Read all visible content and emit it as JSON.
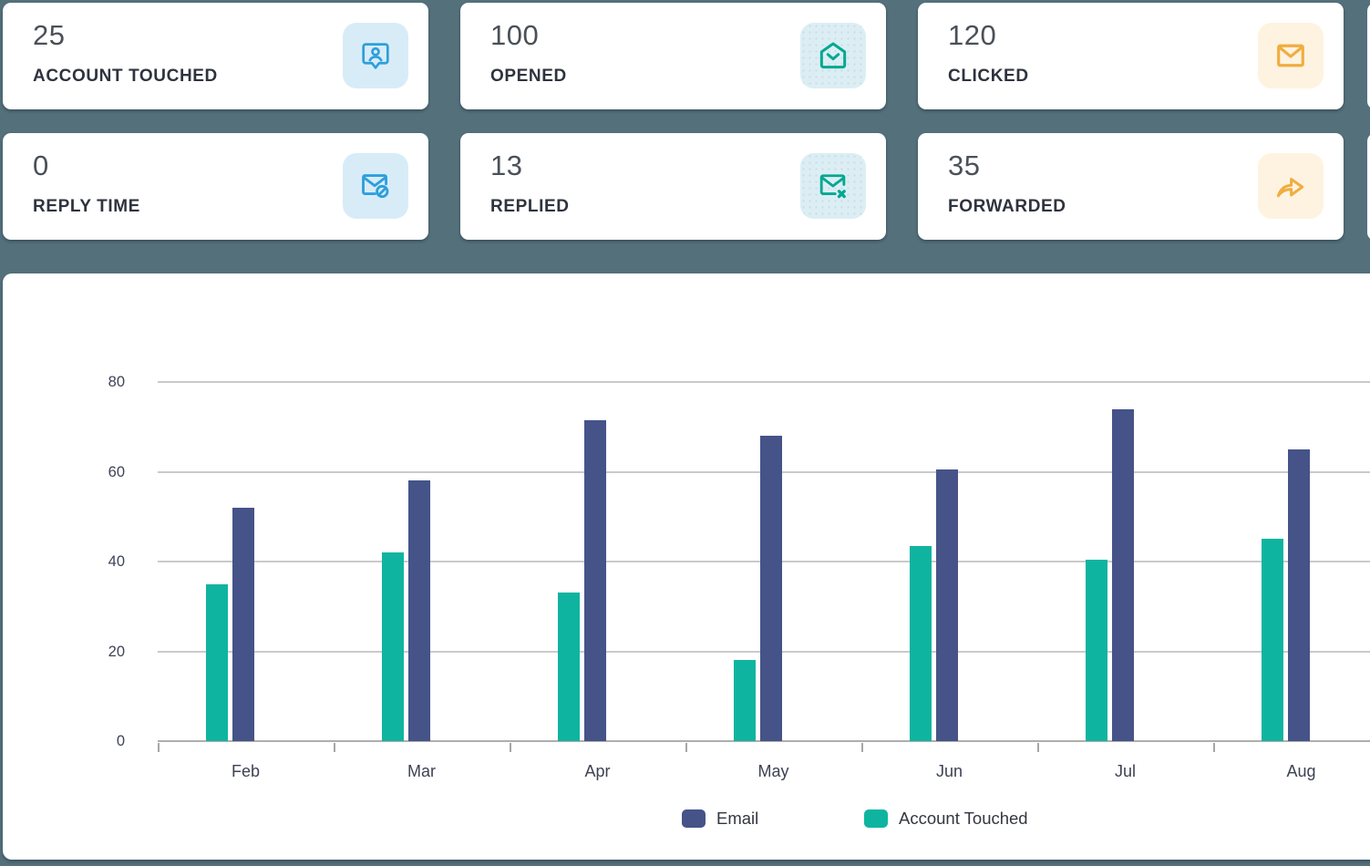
{
  "page_bg": "#54707b",
  "cards": [
    {
      "value": "25",
      "label": "ACCOUNT TOUCHED",
      "icon": "contact-badge-icon",
      "theme": "blue"
    },
    {
      "value": "100",
      "label": "OPENED",
      "icon": "mail-open-icon",
      "theme": "teal"
    },
    {
      "value": "120",
      "label": "CLICKED",
      "icon": "mail-icon",
      "theme": "orange"
    },
    {
      "value": "0",
      "label": "REPLY TIME",
      "icon": "mail-blocked-icon",
      "theme": "blue"
    },
    {
      "value": "13",
      "label": "REPLIED",
      "icon": "mail-x-icon",
      "theme": "teal"
    },
    {
      "value": "35",
      "label": "FORWARDED",
      "icon": "forward-arrow-icon",
      "theme": "orange"
    }
  ],
  "theme_colors": {
    "blue": {
      "icon": "#2d9fdb",
      "bg": "#d8ecf8"
    },
    "teal": {
      "icon": "#00a890",
      "bg": "#dceef4"
    },
    "orange": {
      "icon": "#f0ad3f",
      "bg": "#fdf3e0"
    }
  },
  "chart_data": {
    "type": "bar",
    "categories": [
      "Feb",
      "Mar",
      "Apr",
      "May",
      "Jun",
      "Jul",
      "Aug"
    ],
    "series": [
      {
        "name": "Email",
        "color": "#455389",
        "values": [
          52,
          58,
          71.5,
          68,
          60.5,
          74,
          65
        ]
      },
      {
        "name": "Account Touched",
        "color": "#0fb4a0",
        "values": [
          35,
          42,
          33,
          18,
          43.5,
          40.5,
          45
        ]
      }
    ],
    "bar_draw_order": [
      "Account Touched",
      "Email"
    ],
    "title": "",
    "xlabel": "",
    "ylabel": "",
    "ylim": [
      0,
      80
    ],
    "yticks": [
      0,
      20,
      40,
      60,
      80
    ],
    "grid": true,
    "legend_position": "bottom"
  }
}
